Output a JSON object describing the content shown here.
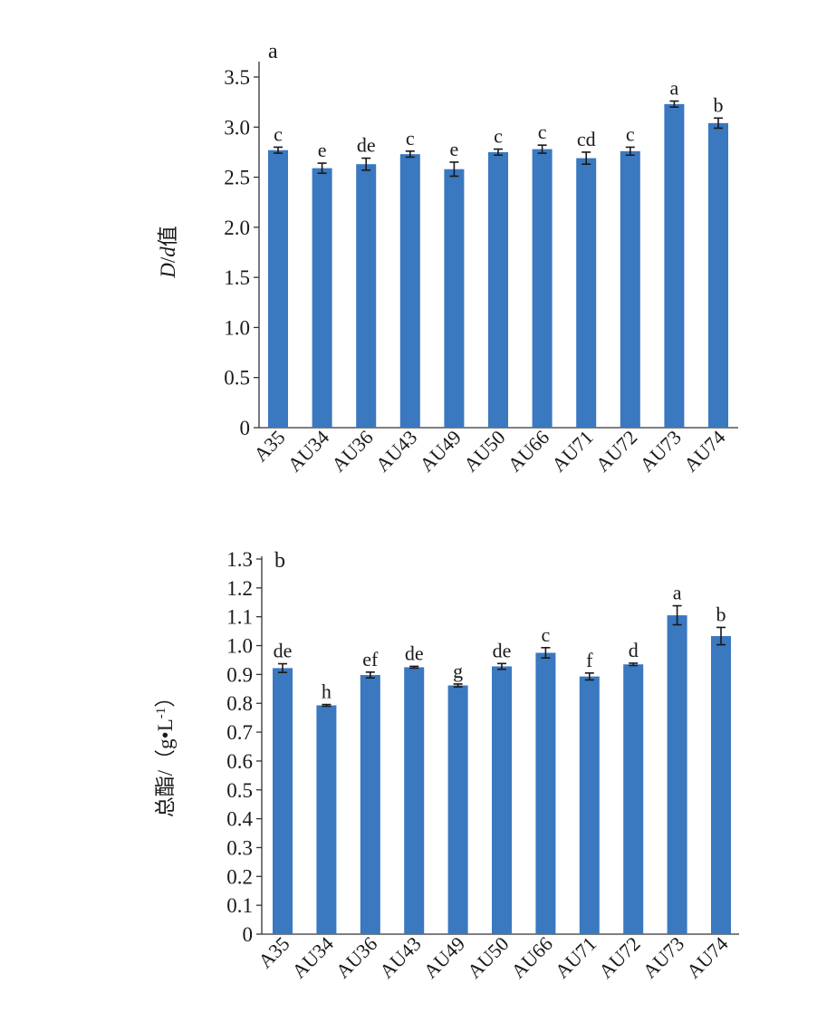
{
  "colors": {
    "bar": "#3a78c0",
    "axis": "#333333",
    "text": "#1a1a1a"
  },
  "chart_data": [
    {
      "type": "bar",
      "panel_label": "a",
      "ylabel_italic_1": "D",
      "ylabel_sep": "/",
      "ylabel_italic_2": "d",
      "ylabel_suffix": "值",
      "ylim": [
        0,
        3.5
      ],
      "yticks": [
        "0",
        "0.5",
        "1.0",
        "1.5",
        "2.0",
        "2.5",
        "3.0",
        "3.5"
      ],
      "grid": false,
      "categories": [
        "A35",
        "AU34",
        "AU36",
        "AU43",
        "AU49",
        "AU50",
        "AU66",
        "AU71",
        "AU72",
        "AU73",
        "AU74"
      ],
      "values": [
        2.77,
        2.59,
        2.63,
        2.73,
        2.58,
        2.75,
        2.78,
        2.69,
        2.76,
        3.23,
        3.04
      ],
      "errors": [
        0.03,
        0.05,
        0.06,
        0.03,
        0.07,
        0.03,
        0.04,
        0.06,
        0.04,
        0.03,
        0.05
      ],
      "significance": [
        "c",
        "e",
        "de",
        "c",
        "e",
        "c",
        "c",
        "cd",
        "c",
        "a",
        "b"
      ]
    },
    {
      "type": "bar",
      "panel_label": "b",
      "ylabel": "总酯/（g•L",
      "ylabel_sup": "-1",
      "ylabel_close": "）",
      "ylim": [
        0,
        1.3
      ],
      "yticks": [
        "0",
        "0.1",
        "0.2",
        "0.3",
        "0.4",
        "0.5",
        "0.6",
        "0.7",
        "0.8",
        "0.9",
        "1.0",
        "1.1",
        "1.2",
        "1.3"
      ],
      "grid": false,
      "categories": [
        "A35",
        "AU34",
        "AU36",
        "AU43",
        "AU49",
        "AU50",
        "AU66",
        "AU71",
        "AU72",
        "AU73",
        "AU74"
      ],
      "values": [
        0.922,
        0.793,
        0.898,
        0.925,
        0.862,
        0.928,
        0.975,
        0.893,
        0.935,
        1.105,
        1.033
      ],
      "errors": [
        0.015,
        0.003,
        0.01,
        0.003,
        0.005,
        0.01,
        0.018,
        0.012,
        0.004,
        0.033,
        0.03
      ],
      "significance": [
        "de",
        "h",
        "ef",
        "de",
        "g",
        "de",
        "c",
        "f",
        "d",
        "a",
        "b"
      ]
    }
  ]
}
